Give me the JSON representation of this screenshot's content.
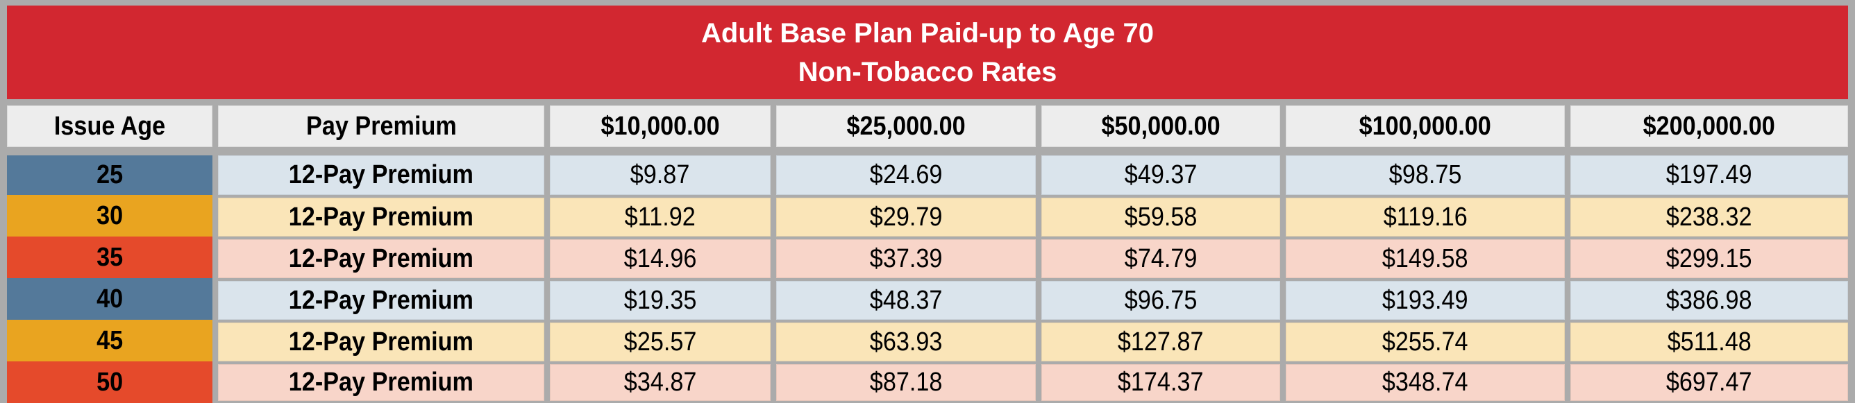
{
  "banner": {
    "title_line1": "Adult Base Plan Paid-up to Age 70",
    "title_line2": "Non-Tobacco Rates"
  },
  "table": {
    "columns": [
      "Issue Age",
      "Pay Premium",
      "$10,000.00",
      "$25,000.00",
      "$50,000.00",
      "$100,000.00",
      "$200,000.00"
    ],
    "rows": [
      {
        "age": "25",
        "premium_type": "12-Pay Premium",
        "theme": "blue",
        "values": [
          "$9.87",
          "$24.69",
          "$49.37",
          "$98.75",
          "$197.49"
        ]
      },
      {
        "age": "30",
        "premium_type": "12-Pay Premium",
        "theme": "amber",
        "values": [
          "$11.92",
          "$29.79",
          "$59.58",
          "$119.16",
          "$238.32"
        ]
      },
      {
        "age": "35",
        "premium_type": "12-Pay Premium",
        "theme": "red",
        "values": [
          "$14.96",
          "$37.39",
          "$74.79",
          "$149.58",
          "$299.15"
        ]
      },
      {
        "age": "40",
        "premium_type": "12-Pay Premium",
        "theme": "blue",
        "values": [
          "$19.35",
          "$48.37",
          "$96.75",
          "$193.49",
          "$386.98"
        ]
      },
      {
        "age": "45",
        "premium_type": "12-Pay Premium",
        "theme": "amber",
        "values": [
          "$25.57",
          "$63.93",
          "$127.87",
          "$255.74",
          "$511.48"
        ]
      },
      {
        "age": "50",
        "premium_type": "12-Pay Premium",
        "theme": "red",
        "values": [
          "$34.87",
          "$87.18",
          "$174.37",
          "$348.74",
          "$697.47"
        ]
      }
    ]
  },
  "colors": {
    "banner_red": "#D22730",
    "border_gray": "#ABABAB",
    "header_bg": "#EDEDED",
    "age_blue": "#54799A",
    "age_amber": "#E9A420",
    "age_red": "#E54A2B",
    "row_blue": "#DAE4EC",
    "row_amber": "#FAE5B8",
    "row_pink": "#F8D5C9",
    "title_text": "#FFFFFF",
    "body_text": "#000000"
  }
}
